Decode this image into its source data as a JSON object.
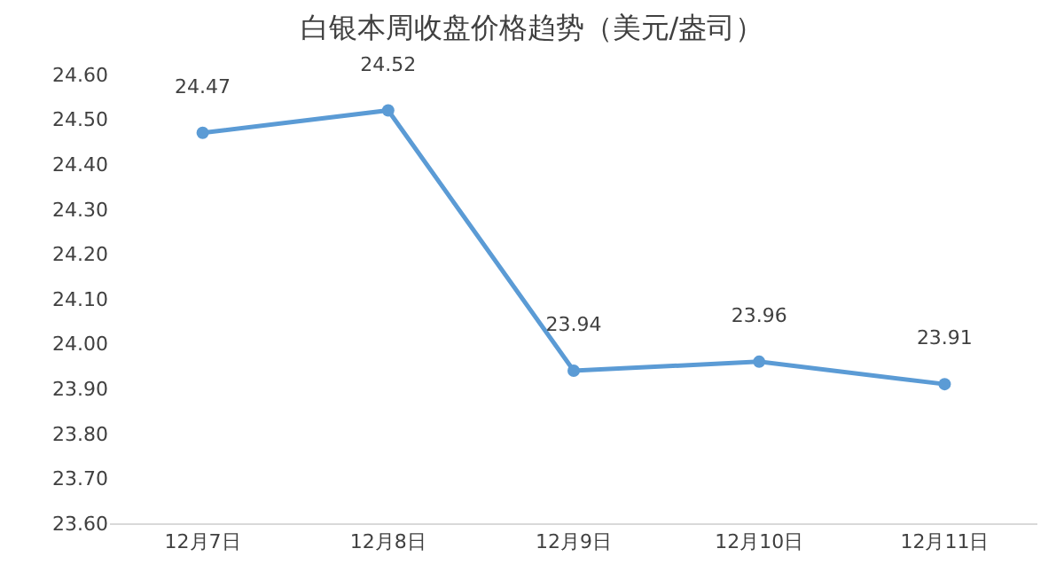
{
  "chart_data": {
    "type": "line",
    "title": "白银本周收盘价格趋势（美元/盎司）",
    "categories": [
      "12月7日",
      "12月8日",
      "12月9日",
      "12月10日",
      "12月11日"
    ],
    "series": [
      {
        "color": "#5b9bd5",
        "values": [
          24.47,
          24.52,
          23.94,
          23.96,
          23.91
        ]
      }
    ],
    "ylim": [
      23.6,
      24.6
    ],
    "yticks": [
      {
        "value": 23.6,
        "label": "23.60"
      },
      {
        "value": 23.7,
        "label": "23.70"
      },
      {
        "value": 23.8,
        "label": "23.80"
      },
      {
        "value": 23.9,
        "label": "23.90"
      },
      {
        "value": 24.0,
        "label": "24.00"
      },
      {
        "value": 24.1,
        "label": "24.10"
      },
      {
        "value": 24.2,
        "label": "24.20"
      },
      {
        "value": 24.3,
        "label": "24.30"
      },
      {
        "value": 24.4,
        "label": "24.40"
      },
      {
        "value": 24.5,
        "label": "24.50"
      },
      {
        "value": 24.6,
        "label": "24.60"
      }
    ],
    "data_labels": true,
    "grid": false,
    "marker": "circle",
    "line_style": "solid"
  }
}
